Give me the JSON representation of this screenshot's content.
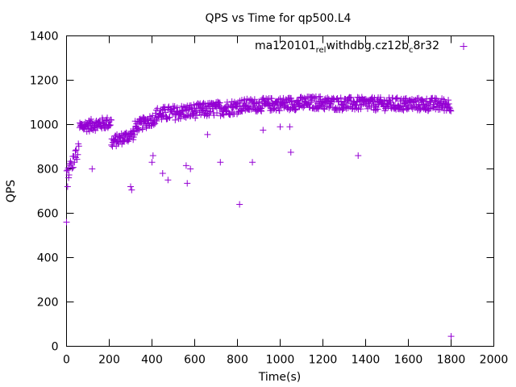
{
  "chart_data": {
    "type": "scatter",
    "title": "QPS vs Time for qp500.L4",
    "xlabel": "Time(s)",
    "ylabel": "QPS",
    "xlim": [
      0,
      2000
    ],
    "ylim": [
      0,
      1400
    ],
    "xticks": [
      0,
      200,
      400,
      600,
      800,
      1000,
      1200,
      1400,
      1600,
      1800,
      2000
    ],
    "yticks": [
      0,
      200,
      400,
      600,
      800,
      1000,
      1200,
      1400
    ],
    "grid": false,
    "legend_position": "top-right",
    "marker": "+",
    "series": [
      {
        "name": "ma120101_rel_withdbg.cz12b_c8r32",
        "name_parts": [
          {
            "text": "ma120101",
            "sub": false
          },
          {
            "text": "rel",
            "sub": true
          },
          {
            "text": "withdbg.cz12b",
            "sub": false
          },
          {
            "text": "c",
            "sub": true
          },
          {
            "text": "8r32",
            "sub": false
          }
        ],
        "color": "#9400d3",
        "outliers": [
          [
            0,
            560
          ],
          [
            5,
            720
          ],
          [
            10,
            760
          ],
          [
            120,
            800
          ],
          [
            300,
            720
          ],
          [
            305,
            705
          ],
          [
            400,
            830
          ],
          [
            405,
            860
          ],
          [
            450,
            780
          ],
          [
            475,
            750
          ],
          [
            560,
            815
          ],
          [
            565,
            735
          ],
          [
            580,
            800
          ],
          [
            660,
            955
          ],
          [
            720,
            830
          ],
          [
            810,
            640
          ],
          [
            870,
            830
          ],
          [
            920,
            975
          ],
          [
            1000,
            990
          ],
          [
            1045,
            990
          ],
          [
            1050,
            875
          ],
          [
            1365,
            860
          ],
          [
            1800,
            45
          ]
        ],
        "segments": [
          {
            "x_start": 0,
            "x_end": 60,
            "step": 3,
            "y_start": 780,
            "y_end": 890,
            "spread": 60
          },
          {
            "x_start": 60,
            "x_end": 210,
            "step": 2,
            "y_start": 990,
            "y_end": 1010,
            "spread": 45
          },
          {
            "x_start": 210,
            "x_end": 320,
            "step": 2,
            "y_start": 920,
            "y_end": 960,
            "spread": 45
          },
          {
            "x_start": 320,
            "x_end": 420,
            "step": 2,
            "y_start": 990,
            "y_end": 1030,
            "spread": 45
          },
          {
            "x_start": 420,
            "x_end": 800,
            "step": 2,
            "y_start": 1045,
            "y_end": 1080,
            "spread": 55
          },
          {
            "x_start": 800,
            "x_end": 1200,
            "step": 2,
            "y_start": 1085,
            "y_end": 1100,
            "spread": 50
          },
          {
            "x_start": 1200,
            "x_end": 1800,
            "step": 2,
            "y_start": 1095,
            "y_end": 1090,
            "spread": 50
          }
        ]
      }
    ]
  }
}
